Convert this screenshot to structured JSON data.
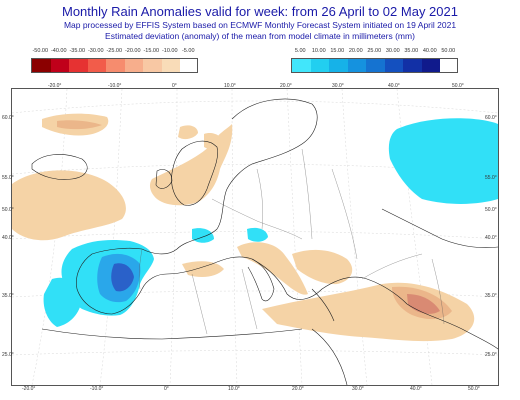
{
  "header": {
    "title": "Monthly Rain Anomalies valid for week: from 26 April to 02 May 2021",
    "line1": "Map processed by EFFIS System based on ECMWF Monthly Forecast System initiated on 19 April 2021",
    "line2": "Estimated deviation (anomaly) of the mean from model climate in millimeters (mm)"
  },
  "legend_dry": {
    "labels": [
      "-50.00",
      "-40.00",
      "-35.00",
      "-30.00",
      "-25.00",
      "-20.00",
      "-15.00",
      "-10.00",
      "-5.00"
    ],
    "colors": [
      "#8b0000",
      "#c0001a",
      "#e63232",
      "#f25c4a",
      "#f68c6e",
      "#f7ae8c",
      "#f8c8a4",
      "#f9dcb8"
    ]
  },
  "legend_wet": {
    "labels": [
      "5.00",
      "10.00",
      "15.00",
      "20.00",
      "25.00",
      "30.00",
      "35.00",
      "40.00",
      "50.00"
    ],
    "colors": [
      "#41e6fb",
      "#22cff0",
      "#16b2e8",
      "#1592df",
      "#1573d1",
      "#1450bf",
      "#1230a6",
      "#101a8c"
    ]
  },
  "axis": {
    "top_lon": [
      "-20.0°",
      "-10.0°",
      "0°",
      "10.0°",
      "20.0°",
      "30.0°",
      "40.0°",
      "50.0°"
    ],
    "bottom_lon": [
      "-20.0°",
      "-10.0°",
      "0°",
      "10.0°",
      "20.0°",
      "30.0°",
      "40.0°",
      "50.0°"
    ],
    "left_lat": [
      "60.0°",
      "55.0°",
      "50.0°",
      "40.0°",
      "35.0°",
      "25.0°"
    ],
    "right_lat": [
      "60.0°",
      "55.0°",
      "50.0°",
      "40.0°",
      "35.0°",
      "25.0°"
    ]
  },
  "colors": {
    "title": "#1a1aa8",
    "dry_light": "#f5d3a6",
    "dry_mid": "#ebb68a",
    "dry_dark": "#d98a73",
    "wet_light": "#31e0f7",
    "wet_mid": "#2aa7ea",
    "wet_dark": "#2a61c9",
    "coast": "#222222"
  }
}
